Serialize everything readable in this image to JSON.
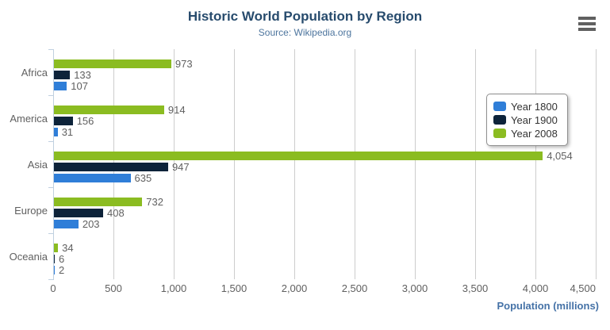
{
  "header": {
    "title": "Historic World Population by Region",
    "subtitle": "Source: Wikipedia.org"
  },
  "menu": {
    "icon": "hamburger-menu-icon"
  },
  "colors": {
    "title": "#274b6d",
    "subtitle": "#4d759e",
    "axis_title": "#4572a7",
    "axis_line": "#C0D0E0",
    "gridline": "#cdcdcd",
    "labels": "#606060",
    "legend_border": "#909090",
    "menu_icon": "#606060"
  },
  "chart_data": {
    "type": "bar",
    "orientation": "horizontal",
    "title": "Historic World Population by Region",
    "subtitle": "Source: Wikipedia.org",
    "categories": [
      "Africa",
      "America",
      "Asia",
      "Europe",
      "Oceania"
    ],
    "series": [
      {
        "name": "Year 1800",
        "color": "#2f7ed8",
        "values": [
          107,
          31,
          635,
          203,
          2
        ]
      },
      {
        "name": "Year 1900",
        "color": "#0d233a",
        "values": [
          133,
          156,
          947,
          408,
          6
        ]
      },
      {
        "name": "Year 2008",
        "color": "#8bbc21",
        "values": [
          973,
          914,
          4054,
          732,
          34
        ]
      }
    ],
    "bar_order_top_to_bottom": [
      "Year 2008",
      "Year 1900",
      "Year 1800"
    ],
    "xlabel": "Population (millions)",
    "ylabel": "",
    "xlim": [
      0,
      4500
    ],
    "x_ticks": [
      0,
      500,
      1000,
      1500,
      2000,
      2500,
      3000,
      3500,
      4000,
      4500
    ],
    "x_tick_labels": [
      "0",
      "500",
      "1,000",
      "1,500",
      "2,000",
      "2,500",
      "3,000",
      "3,500",
      "4,000",
      "4,500"
    ],
    "grid": true,
    "data_labels": true,
    "legend_position": "right"
  }
}
